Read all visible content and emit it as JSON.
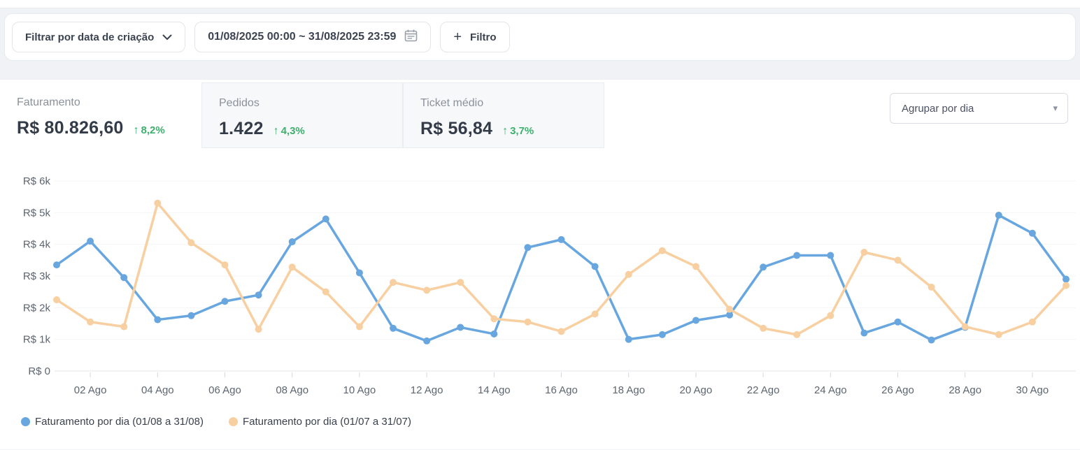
{
  "toolbar": {
    "filter_by_label": "Filtrar por data de criação",
    "date_range_value": "01/08/2025 00:00 ~ 31/08/2025 23:59",
    "add_filter_label": "Filtro",
    "plus_glyph": "+"
  },
  "cards": [
    {
      "title": "Faturamento",
      "value": "R$ 80.826,60",
      "delta": "8,2%",
      "trend_icon": "↑"
    },
    {
      "title": "Pedidos",
      "value": "1.422",
      "delta": "4,3%",
      "trend_icon": "↑"
    },
    {
      "title": "Ticket médio",
      "value": "R$ 56,84",
      "delta": "3,7%",
      "trend_icon": "↑"
    }
  ],
  "group_select": {
    "value": "Agrupar por dia",
    "caret_glyph": "▾"
  },
  "colors": {
    "series_current": "#68a6e0",
    "series_previous": "#f8cfa0",
    "delta_green": "#3cb06c",
    "grid_line": "#f3f4f7",
    "axis_line": "#e3e6ea",
    "axis_text": "#5d6570"
  },
  "chart_data": {
    "type": "line",
    "title": "Faturamento por dia",
    "xlabel": "",
    "ylabel": "R$",
    "ylim": [
      0,
      6000
    ],
    "grid": true,
    "legend_position": "bottom-left",
    "x_days_count": 31,
    "yticks": [
      {
        "value": 6000,
        "label": "R$ 6k"
      },
      {
        "value": 5000,
        "label": "R$ 5k"
      },
      {
        "value": 4000,
        "label": "R$ 4k"
      },
      {
        "value": 3000,
        "label": "R$ 3k"
      },
      {
        "value": 2000,
        "label": "R$ 2k"
      },
      {
        "value": 1000,
        "label": "R$ 1k"
      },
      {
        "value": 0,
        "label": "R$ 0"
      }
    ],
    "x_ticks": [
      {
        "day": 2,
        "label": "02 Ago"
      },
      {
        "day": 4,
        "label": "04 Ago"
      },
      {
        "day": 6,
        "label": "06 Ago"
      },
      {
        "day": 8,
        "label": "08 Ago"
      },
      {
        "day": 10,
        "label": "10 Ago"
      },
      {
        "day": 12,
        "label": "12 Ago"
      },
      {
        "day": 14,
        "label": "14 Ago"
      },
      {
        "day": 16,
        "label": "16 Ago"
      },
      {
        "day": 18,
        "label": "18 Ago"
      },
      {
        "day": 20,
        "label": "20 Ago"
      },
      {
        "day": 22,
        "label": "22 Ago"
      },
      {
        "day": 24,
        "label": "24 Ago"
      },
      {
        "day": 26,
        "label": "26 Ago"
      },
      {
        "day": 28,
        "label": "28 Ago"
      },
      {
        "day": 30,
        "label": "30 Ago"
      }
    ],
    "series": [
      {
        "name": "Faturamento por dia (01/08 a 31/08)",
        "color": "#68a6e0",
        "values": [
          3350,
          4100,
          2950,
          1620,
          1750,
          2200,
          2400,
          4080,
          4800,
          3100,
          1350,
          950,
          1380,
          1170,
          3900,
          4150,
          3300,
          1000,
          1150,
          1600,
          1770,
          3280,
          3650,
          3650,
          1200,
          1550,
          980,
          1380,
          4920,
          4350,
          2900
        ]
      },
      {
        "name": "Faturamento por dia (01/07 a 31/07)",
        "color": "#f8cfa0",
        "values": [
          2250,
          1550,
          1400,
          5300,
          4050,
          3350,
          1320,
          3280,
          2500,
          1400,
          2800,
          2550,
          2800,
          1650,
          1550,
          1250,
          1800,
          3050,
          3800,
          3300,
          1950,
          1350,
          1150,
          1750,
          3750,
          3500,
          2650,
          1400,
          1150,
          1550,
          2700
        ]
      }
    ]
  }
}
